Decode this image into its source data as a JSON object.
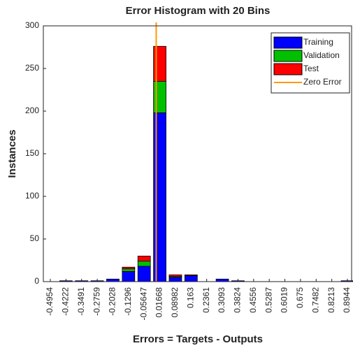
{
  "chart_data": {
    "type": "stacked_bar",
    "title": "Error Histogram with 20 Bins",
    "xlabel": "Errors = Targets - Outputs",
    "ylabel": "Instances",
    "x": [
      -0.4954,
      -0.4222,
      -0.3491,
      -0.2759,
      -0.2028,
      -0.1296,
      -0.05647,
      0.01668,
      0.08982,
      0.163,
      0.2361,
      0.3093,
      0.3824,
      0.4556,
      0.5287,
      0.6019,
      0.675,
      0.7482,
      0.8213,
      0.8944
    ],
    "xticks": [
      -0.4954,
      -0.4222,
      -0.3491,
      -0.2759,
      -0.2028,
      -0.1296,
      -0.05647,
      0.01668,
      0.08982,
      0.163,
      0.2361,
      0.3093,
      0.3824,
      0.4556,
      0.5287,
      0.6019,
      0.675,
      0.7482,
      0.8213,
      0.8944
    ],
    "xlim": [
      -0.528,
      0.914
    ],
    "ylim": [
      0,
      300
    ],
    "yticks": [
      0,
      50,
      100,
      150,
      200,
      250,
      300
    ],
    "series": [
      {
        "name": "Training",
        "color": "#0000ff",
        "values": [
          0,
          1,
          1,
          1,
          3,
          12,
          18,
          198,
          5,
          7,
          0,
          3,
          1,
          0,
          0,
          0,
          0,
          0,
          0,
          1
        ]
      },
      {
        "name": "Validation",
        "color": "#00c000",
        "values": [
          0,
          0,
          0,
          0,
          0,
          3,
          6,
          37,
          1,
          0,
          0,
          0,
          0,
          0,
          0,
          0,
          0,
          0,
          0,
          0
        ]
      },
      {
        "name": "Test",
        "color": "#ff0000",
        "values": [
          0,
          0,
          0,
          0,
          0,
          2,
          6,
          41,
          2,
          1,
          0,
          0,
          0,
          0,
          0,
          0,
          0,
          0,
          0,
          0
        ]
      }
    ],
    "reference_line": {
      "name": "Zero Error",
      "color": "#ff9900",
      "x": 0
    },
    "legend": "upper right"
  }
}
